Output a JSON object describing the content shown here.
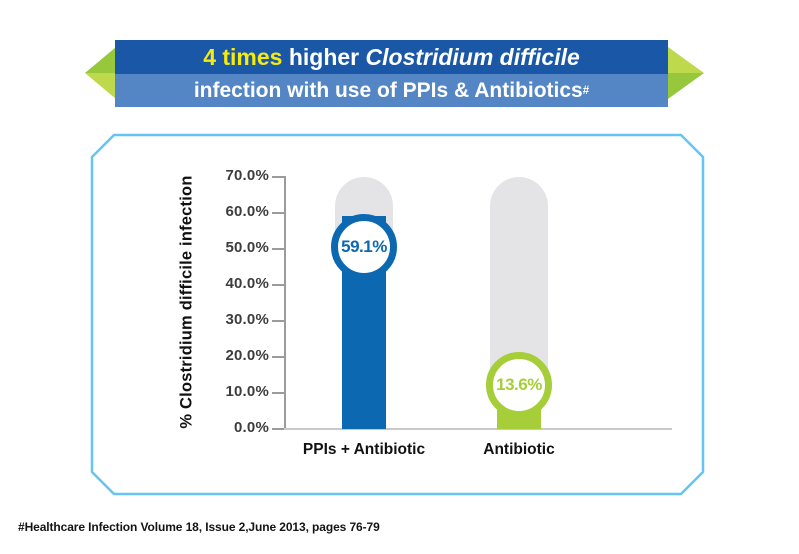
{
  "banner": {
    "line1_highlight": "4 times",
    "line1_normal": " higher ",
    "line1_italic": "Clostridium difficile",
    "line2_text": "infection with use of PPIs & Antibiotics",
    "line2_superscript": "#"
  },
  "chart_data": {
    "type": "bar",
    "categories": [
      "PPIs + Antibiotic",
      "Antibiotic"
    ],
    "values": [
      59.1,
      13.6
    ],
    "value_labels": [
      "59.1%",
      "13.6%"
    ],
    "series_colors": [
      "#0d68b2",
      "#a5ce39"
    ],
    "ylabel": "% Clostridium difficile infection",
    "ylim": [
      0,
      70
    ],
    "ytick_values": [
      0,
      10,
      20,
      30,
      40,
      50,
      60,
      70
    ],
    "ytick_labels": [
      "0.0%",
      "10.0%",
      "20.0%",
      "30.0%",
      "40.0%",
      "50.0%",
      "60.0%",
      "70.0%"
    ],
    "grid": false,
    "legend": false,
    "track_color": "#e4e4e6",
    "track_top_pct": 70,
    "badge_center_pct": [
      50.6,
      12.2
    ]
  },
  "footnote": "#Healthcare Infection Volume 18, Issue 2,June 2013, pages 76-79",
  "colors": {
    "banner_top_bg": "#1a58a7",
    "banner_bottom_bg": "#5486c5",
    "banner_highlight": "#f5eb0c",
    "banner_text": "#ffffff",
    "arrow_green_dark": "#97c83c",
    "arrow_green_light": "#bfd94c",
    "panel_border": "#63c5f3",
    "axis_text": "#3d3d3d",
    "axis_line": "#9b9b9b",
    "baseline": "#c9c9c9",
    "category_text": "#121212"
  }
}
